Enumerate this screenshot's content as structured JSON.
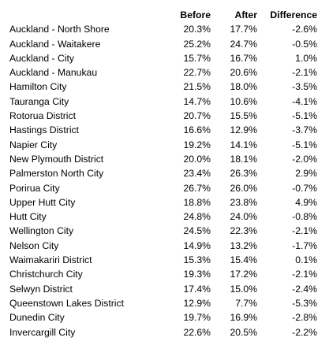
{
  "table": {
    "headers": [
      "",
      "Before",
      "After",
      "Difference"
    ],
    "rows": [
      {
        "name": "Auckland - North Shore",
        "before": "20.3%",
        "after": "17.7%",
        "difference": "-2.6%"
      },
      {
        "name": "Auckland - Waitakere",
        "before": "25.2%",
        "after": "24.7%",
        "difference": "-0.5%"
      },
      {
        "name": "Auckland - City",
        "before": "15.7%",
        "after": "16.7%",
        "difference": "1.0%"
      },
      {
        "name": "Auckland - Manukau",
        "before": "22.7%",
        "after": "20.6%",
        "difference": "-2.1%"
      },
      {
        "name": "Hamilton City",
        "before": "21.5%",
        "after": "18.0%",
        "difference": "-3.5%"
      },
      {
        "name": "Tauranga City",
        "before": "14.7%",
        "after": "10.6%",
        "difference": "-4.1%"
      },
      {
        "name": "Rotorua District",
        "before": "20.7%",
        "after": "15.5%",
        "difference": "-5.1%"
      },
      {
        "name": "Hastings District",
        "before": "16.6%",
        "after": "12.9%",
        "difference": "-3.7%"
      },
      {
        "name": "Napier City",
        "before": "19.2%",
        "after": "14.1%",
        "difference": "-5.1%"
      },
      {
        "name": "New Plymouth District",
        "before": "20.0%",
        "after": "18.1%",
        "difference": "-2.0%"
      },
      {
        "name": "Palmerston North City",
        "before": "23.4%",
        "after": "26.3%",
        "difference": "2.9%"
      },
      {
        "name": "Porirua City",
        "before": "26.7%",
        "after": "26.0%",
        "difference": "-0.7%"
      },
      {
        "name": "Upper Hutt City",
        "before": "18.8%",
        "after": "23.8%",
        "difference": "4.9%"
      },
      {
        "name": "Hutt City",
        "before": "24.8%",
        "after": "24.0%",
        "difference": "-0.8%"
      },
      {
        "name": "Wellington City",
        "before": "24.5%",
        "after": "22.3%",
        "difference": "-2.1%"
      },
      {
        "name": "Nelson City",
        "before": "14.9%",
        "after": "13.2%",
        "difference": "-1.7%"
      },
      {
        "name": "Waimakariri District",
        "before": "15.3%",
        "after": "15.4%",
        "difference": "0.1%"
      },
      {
        "name": "Christchurch City",
        "before": "19.3%",
        "after": "17.2%",
        "difference": "-2.1%"
      },
      {
        "name": "Selwyn District",
        "before": "17.4%",
        "after": "15.0%",
        "difference": "-2.4%"
      },
      {
        "name": "Queenstown Lakes District",
        "before": "12.9%",
        "after": "7.7%",
        "difference": "-5.3%"
      },
      {
        "name": "Dunedin City",
        "before": "19.7%",
        "after": "16.9%",
        "difference": "-2.8%"
      },
      {
        "name": "Invercargill City",
        "before": "22.6%",
        "after": "20.5%",
        "difference": "-2.2%"
      }
    ]
  }
}
